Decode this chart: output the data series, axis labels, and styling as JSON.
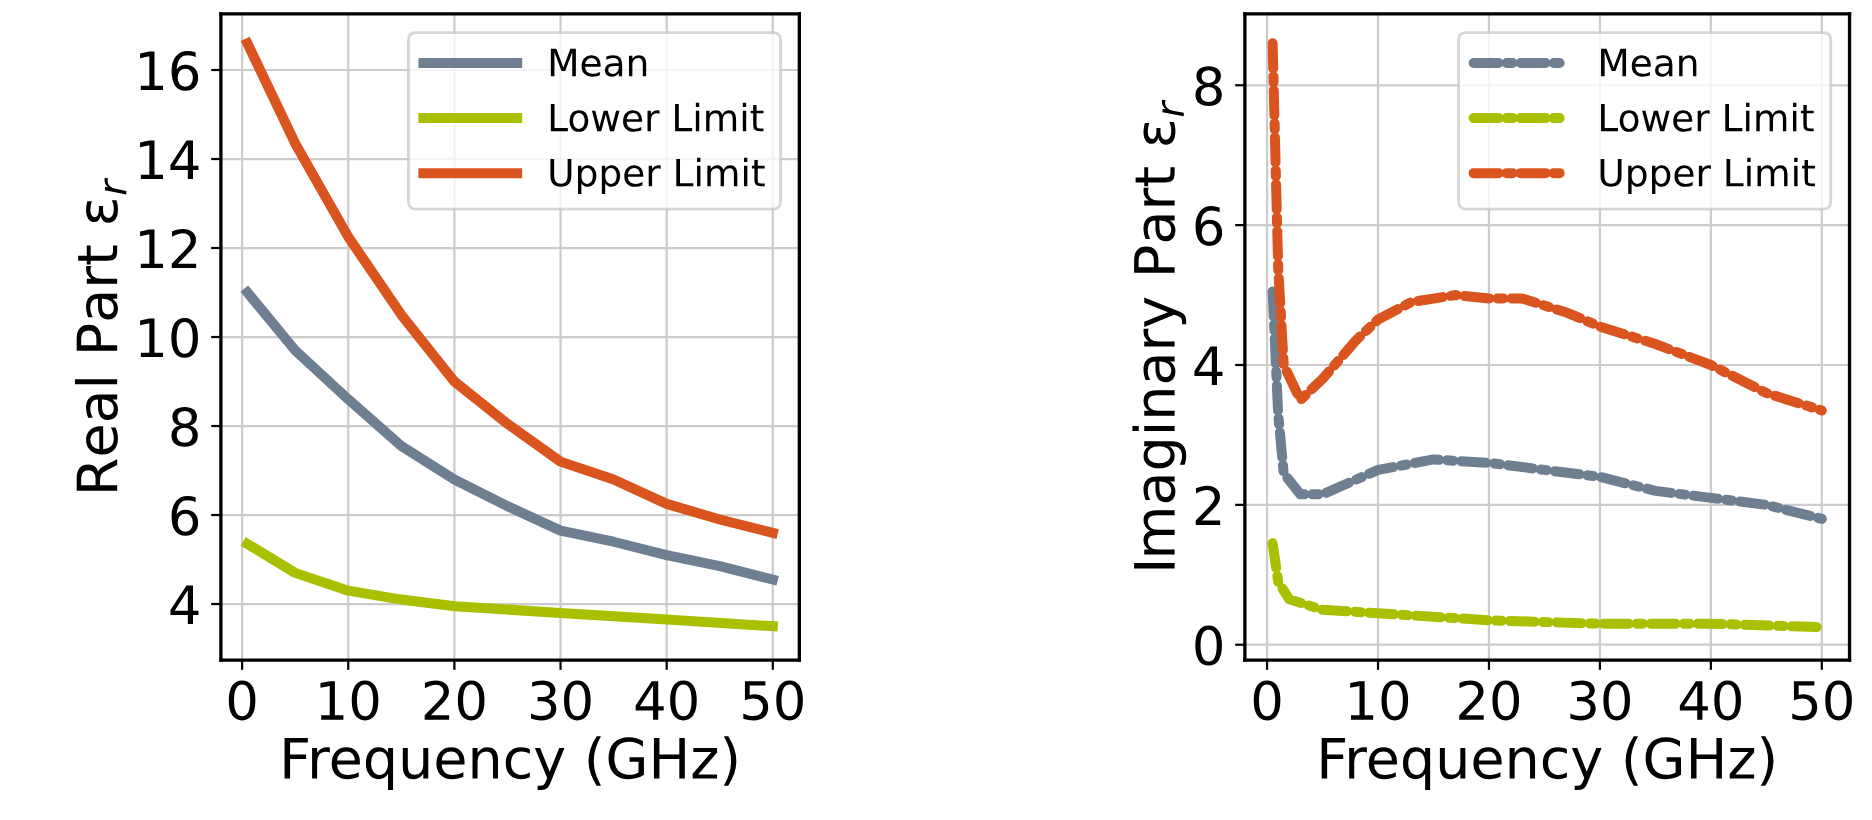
{
  "chart_data": [
    {
      "type": "line",
      "xlabel": "Frequency (GHz)",
      "ylabel": "Real Part ε$_{r}$",
      "xlim": [
        -2,
        52.5
      ],
      "xticks": [
        0,
        10,
        20,
        30,
        40,
        50
      ],
      "ylim": [
        2.74,
        17.26
      ],
      "yticks": [
        4,
        6,
        8,
        10,
        12,
        14,
        16
      ],
      "grid": true,
      "legend": "top right",
      "line_style": "solid",
      "series": [
        {
          "name": "Mean",
          "color": "#6e7f91",
          "x": [
            0.5,
            5,
            10,
            15,
            20,
            25,
            30,
            35,
            40,
            45,
            50
          ],
          "values": [
            11.0,
            9.7,
            8.6,
            7.55,
            6.8,
            6.2,
            5.65,
            5.4,
            5.1,
            4.85,
            4.55
          ]
        },
        {
          "name": "Lower Limit",
          "color": "#a8c000",
          "x": [
            0.5,
            5,
            10,
            15,
            20,
            30,
            40,
            50
          ],
          "values": [
            5.35,
            4.7,
            4.3,
            4.1,
            3.95,
            3.8,
            3.65,
            3.5
          ]
        },
        {
          "name": "Upper Limit",
          "color": "#d9541e",
          "x": [
            0.5,
            5,
            10,
            15,
            20,
            25,
            30,
            35,
            40,
            45,
            50
          ],
          "values": [
            16.6,
            14.35,
            12.25,
            10.5,
            9.0,
            8.05,
            7.2,
            6.8,
            6.25,
            5.9,
            5.6
          ]
        }
      ]
    },
    {
      "type": "line",
      "xlabel": "Frequency (GHz)",
      "ylabel": "Imaginary Part ε$_{r}$",
      "xlim": [
        -2,
        52.5
      ],
      "xticks": [
        0,
        10,
        20,
        30,
        40,
        50
      ],
      "ylim": [
        -0.22,
        9.02
      ],
      "yticks": [
        0,
        2,
        4,
        6,
        8
      ],
      "grid": true,
      "legend": "top right",
      "line_style": "dashdot",
      "series": [
        {
          "name": "Mean",
          "color": "#6e7f91",
          "x": [
            0.5,
            1,
            1.5,
            3,
            5,
            10,
            15,
            20,
            25,
            30,
            35,
            40,
            45,
            50
          ],
          "values": [
            5.05,
            3.3,
            2.45,
            2.15,
            2.15,
            2.5,
            2.65,
            2.6,
            2.5,
            2.4,
            2.2,
            2.1,
            2.0,
            1.8
          ]
        },
        {
          "name": "Lower Limit",
          "color": "#a8c000",
          "x": [
            0.5,
            1,
            2,
            5,
            10,
            20,
            30,
            40,
            50
          ],
          "values": [
            1.45,
            0.9,
            0.65,
            0.5,
            0.45,
            0.35,
            0.3,
            0.3,
            0.25
          ]
        },
        {
          "name": "Upper Limit",
          "color": "#d9541e",
          "x": [
            0.5,
            1,
            1.5,
            3,
            5,
            8,
            10,
            13,
            17,
            20,
            23,
            27,
            30,
            35,
            40,
            45,
            50
          ],
          "values": [
            8.6,
            5.4,
            4.0,
            3.5,
            3.8,
            4.35,
            4.65,
            4.9,
            5.0,
            4.95,
            4.95,
            4.75,
            4.55,
            4.3,
            4.0,
            3.6,
            3.35
          ]
        }
      ]
    }
  ]
}
